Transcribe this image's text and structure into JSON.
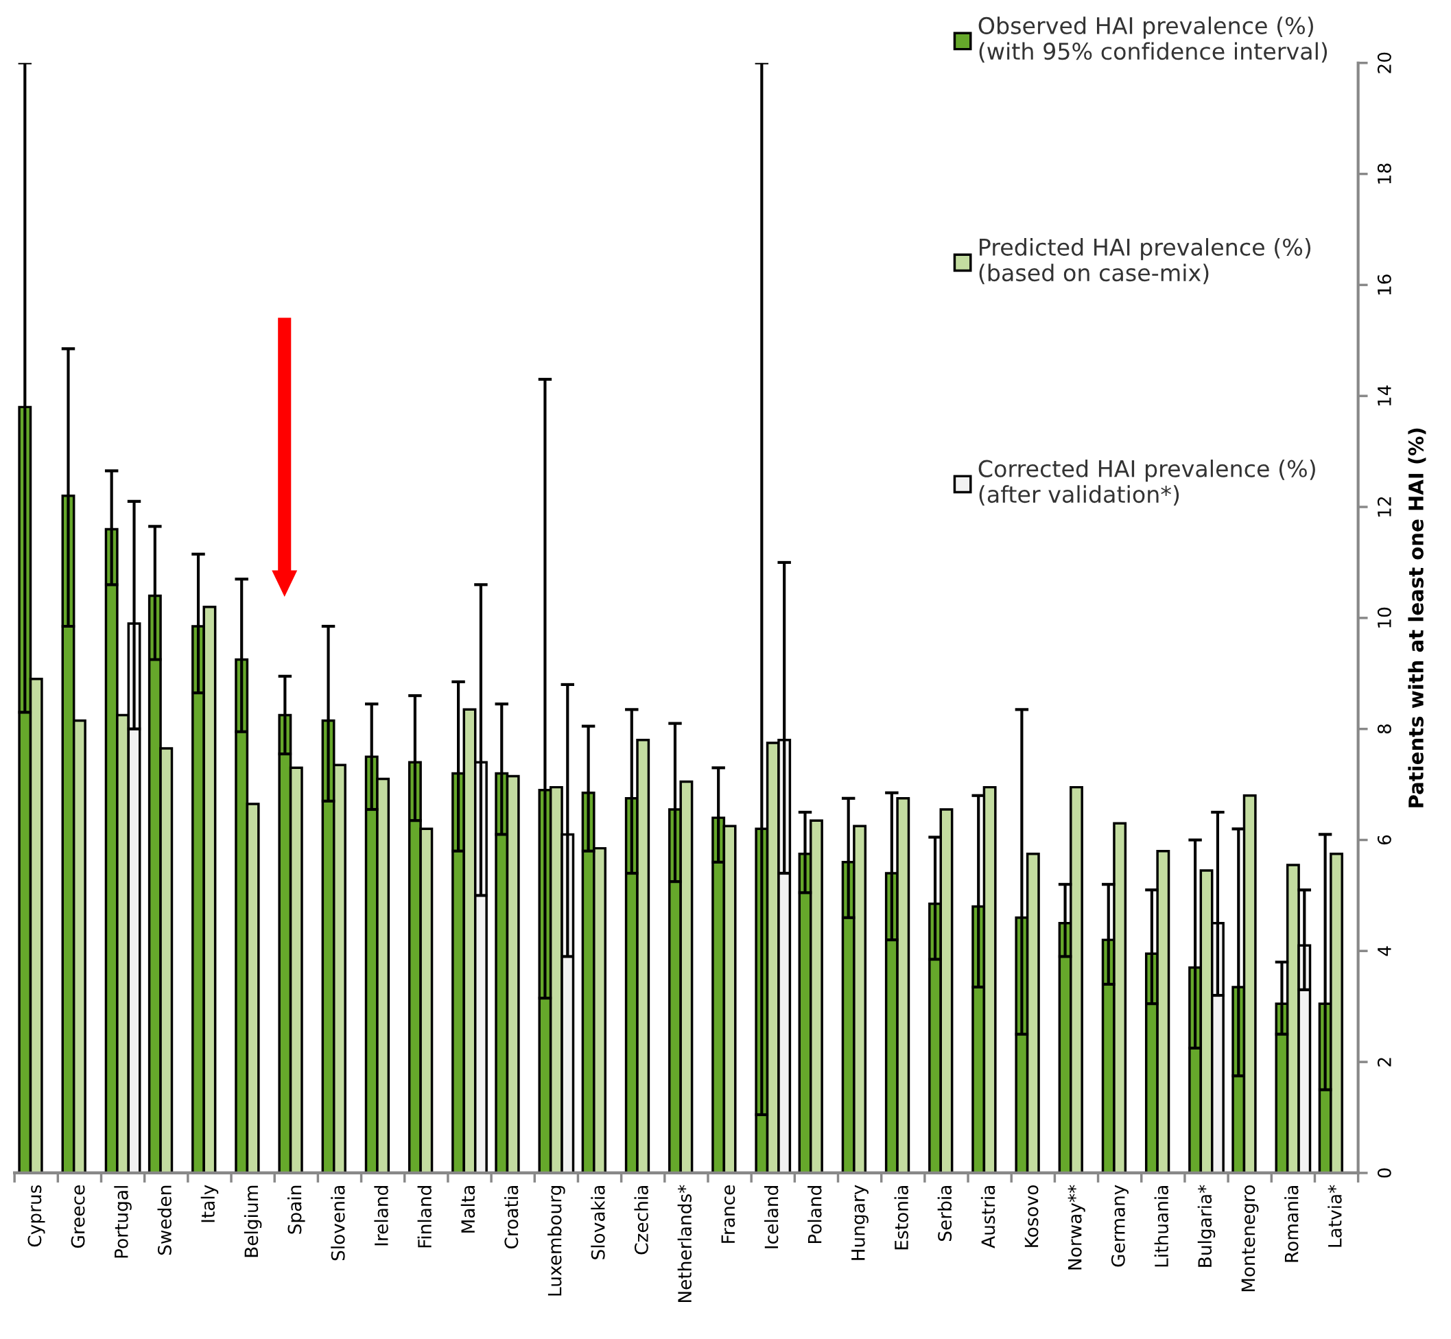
{
  "chart_data": {
    "type": "bar",
    "categories": [
      "Cyprus",
      "Greece",
      "Portugal",
      "Sweden",
      "Italy",
      "Belgium",
      "Spain",
      "Slovenia",
      "Ireland",
      "Finland",
      "Malta",
      "Croatia",
      "Luxembourg",
      "Slovakia",
      "Czechia",
      "Netherlands*",
      "France",
      "Iceland",
      "Poland",
      "Hungary",
      "Estonia",
      "Serbia",
      "Austria",
      "Kosovo",
      "Norway**",
      "Germany",
      "Lithuania",
      "Bulgaria*",
      "Montenegro",
      "Romania",
      "Latvia*"
    ],
    "series": [
      {
        "name": "Observed HAI prevalence (%)\n(with 95% confidence interval)",
        "axis": "y2",
        "color": "#66a82b",
        "values": [
          13.8,
          12.2,
          11.6,
          10.4,
          9.85,
          9.25,
          8.25,
          8.15,
          7.5,
          7.4,
          7.2,
          7.2,
          6.9,
          6.85,
          6.75,
          6.55,
          6.4,
          6.2,
          5.75,
          5.6,
          5.4,
          4.85,
          4.8,
          4.6,
          4.5,
          4.2,
          3.95,
          3.7,
          3.35,
          3.05,
          3.05
        ],
        "errors": [
          [
            8.3,
            20
          ],
          [
            9.85,
            14.85
          ],
          [
            10.6,
            12.65
          ],
          [
            9.25,
            11.65
          ],
          [
            8.65,
            11.15
          ],
          [
            7.95,
            10.7
          ],
          [
            7.55,
            8.95
          ],
          [
            6.7,
            9.85
          ],
          [
            6.55,
            8.45
          ],
          [
            6.35,
            8.6
          ],
          [
            5.8,
            8.85
          ],
          [
            6.1,
            8.45
          ],
          [
            3.15,
            14.3
          ],
          [
            5.8,
            8.05
          ],
          [
            5.4,
            8.35
          ],
          [
            5.25,
            8.1
          ],
          [
            5.6,
            7.3
          ],
          [
            1.05,
            20
          ],
          [
            5.05,
            6.5
          ],
          [
            4.6,
            6.75
          ],
          [
            4.2,
            6.85
          ],
          [
            3.85,
            6.05
          ],
          [
            3.35,
            6.8
          ],
          [
            2.5,
            8.35
          ],
          [
            3.9,
            5.2
          ],
          [
            3.4,
            5.2
          ],
          [
            3.05,
            5.1
          ],
          [
            2.25,
            6.0
          ],
          [
            1.75,
            6.2
          ],
          [
            2.5,
            3.8
          ],
          [
            1.5,
            6.1
          ]
        ]
      },
      {
        "name": "Predicted HAI prevalence (%)\n(based on case-mix)",
        "axis": "y2",
        "color": "#c3dca0",
        "values": [
          8.9,
          8.15,
          8.25,
          7.65,
          10.2,
          6.65,
          7.3,
          7.35,
          7.1,
          6.2,
          8.35,
          7.15,
          6.95,
          5.85,
          7.8,
          7.05,
          6.25,
          7.75,
          6.35,
          6.25,
          6.75,
          6.55,
          6.95,
          5.75,
          6.95,
          6.3,
          5.8,
          5.45,
          6.8,
          5.55,
          5.75
        ]
      },
      {
        "name": "Corrected HAI prevalence (%)\n(after validation*)",
        "axis": "y2",
        "color": "#f2f2f2",
        "values": [
          null,
          null,
          9.9,
          null,
          null,
          null,
          null,
          null,
          null,
          null,
          7.4,
          null,
          6.1,
          null,
          null,
          null,
          null,
          7.8,
          null,
          null,
          null,
          null,
          null,
          null,
          null,
          null,
          null,
          4.5,
          null,
          4.1,
          null
        ],
        "errors": [
          null,
          null,
          [
            8.0,
            12.1
          ],
          null,
          null,
          null,
          null,
          null,
          null,
          null,
          [
            5.0,
            10.6
          ],
          null,
          [
            3.9,
            8.8
          ],
          null,
          null,
          null,
          null,
          [
            5.4,
            11.0
          ],
          null,
          null,
          null,
          null,
          null,
          null,
          null,
          null,
          null,
          [
            3.2,
            6.5
          ],
          null,
          [
            3.3,
            5.1
          ],
          null
        ]
      }
    ],
    "y2label": "Patients with at least one HAI (%)",
    "y2lim": [
      0,
      20
    ],
    "y2ticks": [
      0,
      2,
      4,
      6,
      8,
      10,
      12,
      14,
      16,
      18,
      20
    ],
    "grid": false,
    "legend": "top right"
  }
}
